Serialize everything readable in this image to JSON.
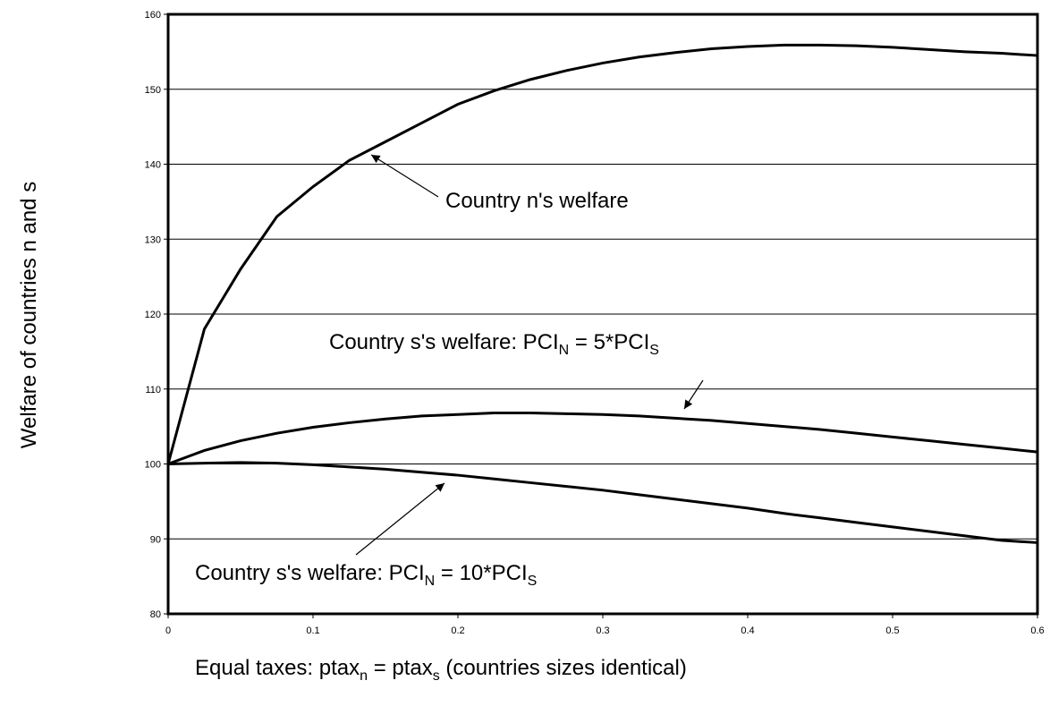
{
  "chart_data": {
    "type": "line",
    "x_label": [
      {
        "text": "Equal taxes:  ptax"
      },
      {
        "text": "n",
        "sub": true
      },
      {
        "text": " = ptax"
      },
      {
        "text": "s",
        "sub": true
      },
      {
        "text": "   (countries sizes identical)"
      }
    ],
    "y_label": "Welfare of countries n and s",
    "x": [
      0,
      0.025,
      0.05,
      0.075,
      0.1,
      0.125,
      0.15,
      0.175,
      0.2,
      0.225,
      0.25,
      0.275,
      0.3,
      0.325,
      0.35,
      0.375,
      0.4,
      0.425,
      0.45,
      0.475,
      0.5,
      0.525,
      0.55,
      0.575,
      0.6
    ],
    "series": [
      {
        "color": "#000000",
        "values": [
          100,
          118,
          126,
          133,
          137,
          140.5,
          143,
          145.5,
          148,
          149.8,
          151.3,
          152.5,
          153.5,
          154.3,
          154.9,
          155.4,
          155.7,
          155.9,
          155.9,
          155.8,
          155.6,
          155.3,
          155.0,
          154.8,
          154.5
        ]
      },
      {
        "color": "#000000",
        "values": [
          100,
          101.8,
          103.1,
          104.1,
          104.9,
          105.5,
          106.0,
          106.4,
          106.6,
          106.8,
          106.8,
          106.7,
          106.6,
          106.4,
          106.1,
          105.8,
          105.4,
          105.0,
          104.6,
          104.1,
          103.6,
          103.1,
          102.6,
          102.1,
          101.6
        ]
      },
      {
        "color": "#000000",
        "values": [
          100,
          100.1,
          100.2,
          100.1,
          99.9,
          99.6,
          99.3,
          98.9,
          98.5,
          98.0,
          97.5,
          97.0,
          96.5,
          95.9,
          95.3,
          94.7,
          94.1,
          93.4,
          92.8,
          92.2,
          91.6,
          91.0,
          90.4,
          89.8,
          89.5
        ]
      }
    ],
    "annotations": [
      [
        {
          "text": "Country n's welfare"
        }
      ],
      [
        {
          "text": "Country s's welfare:   PCI"
        },
        {
          "text": "N",
          "sub": true
        },
        {
          "text": " = 5*PCI"
        },
        {
          "text": "S",
          "sub": true
        }
      ],
      [
        {
          "text": "Country s's welfare:   PCI"
        },
        {
          "text": "N",
          "sub": true
        },
        {
          "text": " = 10*PCI"
        },
        {
          "text": "S",
          "sub": true
        }
      ]
    ],
    "xlim": [
      0,
      0.6
    ],
    "xticks": [
      0,
      0.1,
      0.2,
      0.3,
      0.4,
      0.5,
      0.6
    ],
    "ylim": [
      80,
      160
    ],
    "yticks": [
      80,
      90,
      100,
      110,
      120,
      130,
      140,
      150,
      160
    ],
    "grid": true
  }
}
